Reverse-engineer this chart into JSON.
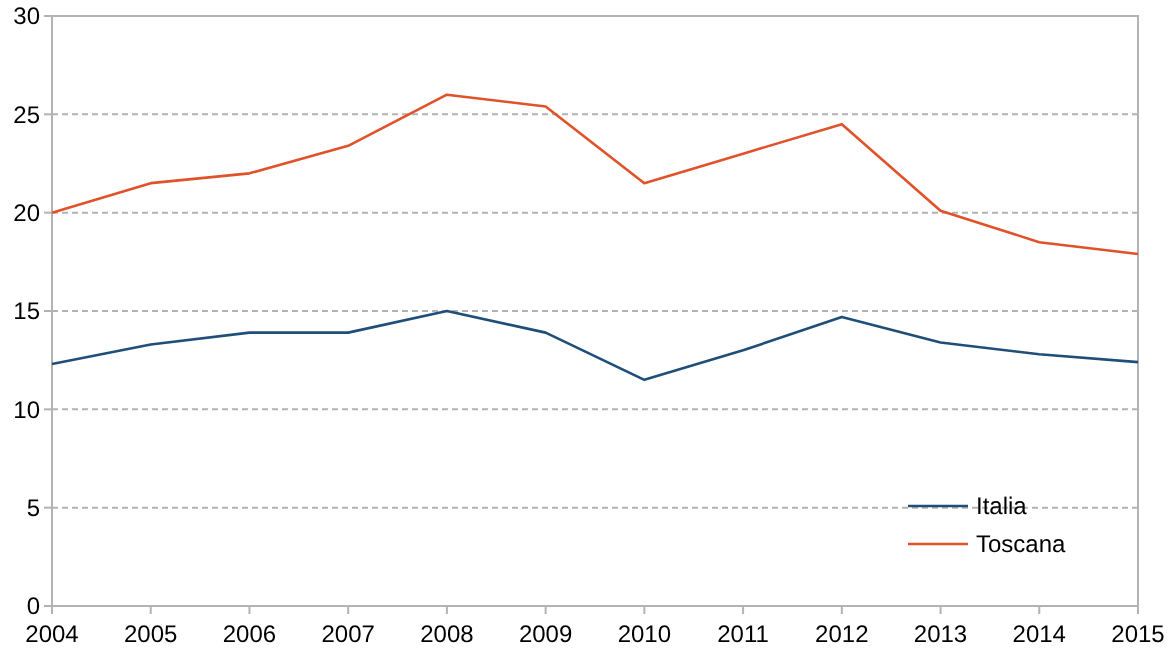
{
  "chart_data": {
    "type": "line",
    "x": [
      2004,
      2005,
      2006,
      2007,
      2008,
      2009,
      2010,
      2011,
      2012,
      2013,
      2014,
      2015
    ],
    "xlim": [
      2004,
      2015
    ],
    "xticks": [
      2004,
      2005,
      2006,
      2007,
      2008,
      2009,
      2010,
      2011,
      2012,
      2013,
      2014,
      2015
    ],
    "ylim": [
      0,
      30
    ],
    "yticks": [
      0,
      5,
      10,
      15,
      20,
      25,
      30
    ],
    "grid": "y",
    "legend": "bottom right",
    "marker": "none",
    "line_style": "solid",
    "series": [
      {
        "name": "Italia",
        "color": "#1f4e79",
        "values": [
          12.3,
          13.3,
          13.9,
          13.9,
          15.0,
          13.9,
          11.5,
          13.0,
          14.7,
          13.4,
          12.8,
          12.4
        ]
      },
      {
        "name": "Toscana",
        "color": "#e0522a",
        "values": [
          20.0,
          21.5,
          22.0,
          23.4,
          26.0,
          25.4,
          21.5,
          23.0,
          24.5,
          20.1,
          18.5,
          17.9
        ]
      }
    ]
  }
}
